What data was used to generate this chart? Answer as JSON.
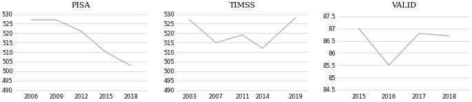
{
  "pisa": {
    "title": "PISA",
    "x": [
      2006,
      2009,
      2012,
      2015,
      2018
    ],
    "y": [
      527,
      527,
      521,
      510,
      503
    ],
    "xlim": [
      2004,
      2020
    ],
    "ylim": [
      489,
      532
    ],
    "yticks": [
      490,
      495,
      500,
      505,
      510,
      515,
      520,
      525,
      530
    ],
    "xticks": [
      2006,
      2009,
      2012,
      2015,
      2018
    ]
  },
  "timss": {
    "title": "TIMSS",
    "x": [
      2003,
      2007,
      2011,
      2014,
      2019
    ],
    "y": [
      527,
      515,
      519,
      512,
      528
    ],
    "xlim": [
      2001,
      2021
    ],
    "ylim": [
      489,
      532
    ],
    "yticks": [
      490,
      495,
      500,
      505,
      510,
      515,
      520,
      525,
      530
    ],
    "xticks": [
      2003,
      2007,
      2011,
      2014,
      2019
    ]
  },
  "valid": {
    "title": "VALID",
    "x": [
      2015,
      2016,
      2017,
      2018
    ],
    "y": [
      87.0,
      85.5,
      86.8,
      86.7
    ],
    "xlim": [
      2014.3,
      2018.7
    ],
    "ylim": [
      84.4,
      87.75
    ],
    "yticks": [
      84.5,
      85,
      85.5,
      86,
      86.5,
      87,
      87.5
    ],
    "ytick_labels": [
      "84.5",
      "85",
      "85.5",
      "86",
      "86.5",
      "87",
      "87.5"
    ],
    "xticks": [
      2015,
      2016,
      2017,
      2018
    ]
  },
  "line_color": "#b0b0b0",
  "line_width": 1.0,
  "title_fontsize": 8,
  "tick_fontsize": 6,
  "background_color": "#ffffff"
}
